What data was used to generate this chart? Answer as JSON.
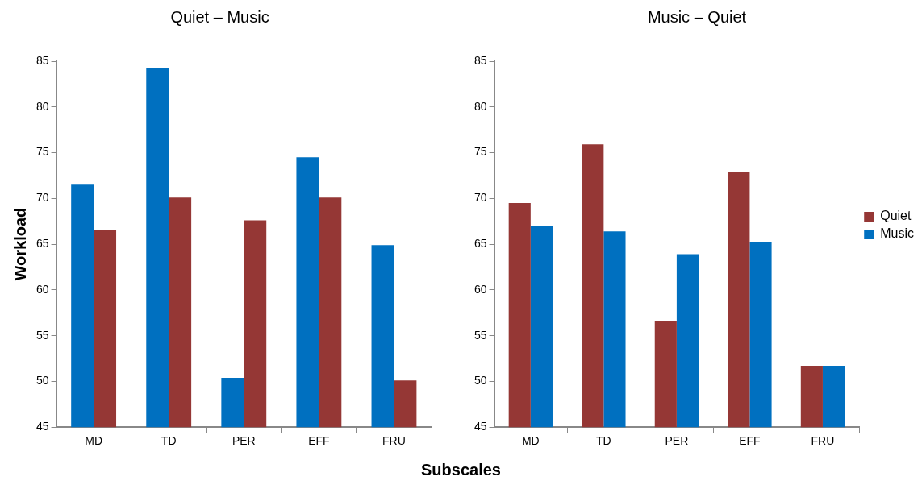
{
  "chart_data": [
    {
      "type": "bar",
      "title": "Quiet – Music",
      "xlabel": "Subscales",
      "ylabel": "Workload",
      "categories": [
        "MD",
        "TD",
        "PER",
        "EFF",
        "FRU"
      ],
      "series": [
        {
          "color": "#0070c0",
          "values": [
            71.5,
            84.3,
            50.4,
            74.5,
            64.9
          ]
        },
        {
          "color": "#953735",
          "values": [
            66.5,
            70.1,
            67.6,
            70.1,
            50.1
          ]
        }
      ],
      "ylim": [
        45,
        85
      ],
      "yticks": [
        45,
        50,
        55,
        60,
        65,
        70,
        75,
        80,
        85
      ],
      "grid": false,
      "legend": false
    },
    {
      "type": "bar",
      "title": "Music – Quiet",
      "categories": [
        "MD",
        "TD",
        "PER",
        "EFF",
        "FRU"
      ],
      "series": [
        {
          "name": "Quiet",
          "color": "#953735",
          "values": [
            69.5,
            75.9,
            56.6,
            72.9,
            51.7
          ]
        },
        {
          "name": "Music",
          "color": "#0070c0",
          "values": [
            67.0,
            66.4,
            63.9,
            65.2,
            51.7
          ]
        }
      ],
      "ylim": [
        45,
        85
      ],
      "yticks": [
        45,
        50,
        55,
        60,
        65,
        70,
        75,
        80,
        85
      ],
      "grid": false,
      "legend": "right"
    }
  ]
}
